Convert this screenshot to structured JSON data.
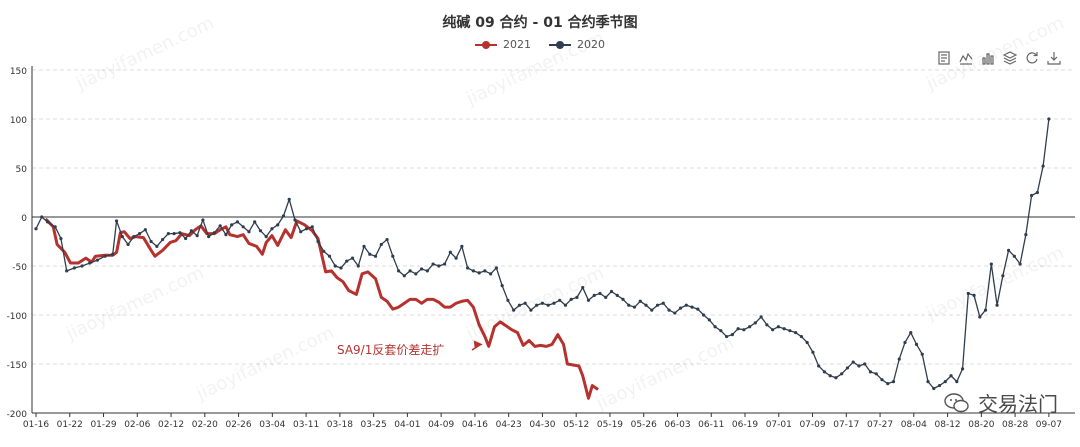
{
  "title": "纯碱 09 合约 - 01 合约季节图",
  "legend": [
    {
      "name": "2021",
      "color": "#b5322f"
    },
    {
      "name": "2020",
      "color": "#2f3e4e"
    }
  ],
  "toolbox": [
    "data-view-icon",
    "line-chart-icon",
    "bar-chart-icon",
    "stack-icon",
    "restore-icon",
    "save-image-icon"
  ],
  "watermark": "交易法门",
  "watermark_bg": "jiaoyifamen.com",
  "chart_data": {
    "type": "line",
    "title": "纯碱 09 合约 - 01 合约季节图",
    "x": [
      "01-16",
      "01-22",
      "01-29",
      "02-06",
      "02-12",
      "02-20",
      "02-26",
      "03-04",
      "03-11",
      "03-18",
      "03-25",
      "04-01",
      "04-09",
      "04-16",
      "04-23",
      "04-30",
      "05-12",
      "05-19",
      "05-26",
      "06-03",
      "06-11",
      "06-19",
      "07-01",
      "07-09",
      "07-17",
      "07-27",
      "08-04",
      "08-12",
      "08-20",
      "08-28",
      "09-07"
    ],
    "ylim": [
      -200,
      150
    ],
    "yticks": [
      -200,
      -150,
      -100,
      -50,
      0,
      50,
      100,
      150
    ],
    "grid": true,
    "annotation": {
      "text": "SA9/1反套价差走扩",
      "color": "#b5322f"
    },
    "series": [
      {
        "name": "2021",
        "color": "#b5322f",
        "values": [
          [
            0.5,
            -2
          ],
          [
            0.9,
            -10
          ],
          [
            1.1,
            -28
          ],
          [
            1.5,
            -36
          ],
          [
            1.8,
            -47
          ],
          [
            2.2,
            -47
          ],
          [
            2.6,
            -42
          ],
          [
            2.9,
            -46
          ],
          [
            3.1,
            -40
          ],
          [
            3.6,
            -39
          ],
          [
            4.0,
            -39
          ],
          [
            4.2,
            -36
          ],
          [
            4.4,
            -16
          ],
          [
            4.6,
            -15
          ],
          [
            4.9,
            -22
          ],
          [
            5.2,
            -20
          ],
          [
            5.6,
            -21
          ],
          [
            6.0,
            -34
          ],
          [
            6.2,
            -40
          ],
          [
            6.6,
            -34
          ],
          [
            7.0,
            -26
          ],
          [
            7.3,
            -24
          ],
          [
            7.6,
            -17
          ],
          [
            8.0,
            -19
          ],
          [
            8.3,
            -13
          ],
          [
            8.6,
            -9
          ],
          [
            8.9,
            -17
          ],
          [
            9.3,
            -17
          ],
          [
            9.6,
            -13
          ],
          [
            9.9,
            -10
          ],
          [
            10.1,
            -18
          ],
          [
            10.5,
            -20
          ],
          [
            10.8,
            -18
          ],
          [
            11.1,
            -27
          ],
          [
            11.5,
            -30
          ],
          [
            11.8,
            -38
          ],
          [
            12.0,
            -26
          ],
          [
            12.3,
            -19
          ],
          [
            12.6,
            -29
          ],
          [
            13.0,
            -13
          ],
          [
            13.3,
            -21
          ],
          [
            13.6,
            -4
          ],
          [
            14.0,
            -8
          ],
          [
            14.4,
            -14
          ],
          [
            14.7,
            -22
          ],
          [
            15.1,
            -56
          ],
          [
            15.4,
            -55
          ],
          [
            15.7,
            -62
          ],
          [
            16.0,
            -66
          ],
          [
            16.3,
            -75
          ],
          [
            16.7,
            -79
          ],
          [
            17.0,
            -58
          ],
          [
            17.3,
            -56
          ],
          [
            17.7,
            -63
          ],
          [
            18.0,
            -82
          ],
          [
            18.3,
            -86
          ],
          [
            18.6,
            -94
          ],
          [
            18.9,
            -92
          ],
          [
            19.2,
            -88
          ],
          [
            19.5,
            -84
          ],
          [
            19.8,
            -84
          ],
          [
            20.1,
            -88
          ],
          [
            20.4,
            -84
          ],
          [
            20.7,
            -84
          ],
          [
            21.0,
            -87
          ],
          [
            21.3,
            -92
          ],
          [
            21.6,
            -92
          ],
          [
            21.9,
            -88
          ],
          [
            22.2,
            -86
          ],
          [
            22.5,
            -85
          ],
          [
            22.8,
            -92
          ],
          [
            23.1,
            -110
          ],
          [
            23.4,
            -122
          ],
          [
            23.6,
            -132
          ],
          [
            23.9,
            -112
          ],
          [
            24.2,
            -107
          ],
          [
            24.5,
            -111
          ],
          [
            24.8,
            -115
          ],
          [
            25.1,
            -118
          ],
          [
            25.4,
            -131
          ],
          [
            25.7,
            -126
          ],
          [
            26.0,
            -132
          ],
          [
            26.3,
            -131
          ],
          [
            26.6,
            -132
          ],
          [
            26.9,
            -130
          ],
          [
            27.2,
            -120
          ],
          [
            27.5,
            -130
          ],
          [
            27.7,
            -150
          ],
          [
            28.0,
            -151
          ],
          [
            28.3,
            -152
          ],
          [
            28.5,
            -162
          ],
          [
            28.8,
            -185
          ],
          [
            29.0,
            -172
          ],
          [
            29.3,
            -176
          ]
        ]
      },
      {
        "name": "2020",
        "color": "#2f3e4e",
        "values": [
          [
            0.0,
            -12
          ],
          [
            0.3,
            0
          ],
          [
            0.6,
            -5
          ],
          [
            1.0,
            -10
          ],
          [
            1.3,
            -22
          ],
          [
            1.6,
            -55
          ],
          [
            2.0,
            -52
          ],
          [
            2.4,
            -50
          ],
          [
            2.8,
            -47
          ],
          [
            3.2,
            -44
          ],
          [
            3.6,
            -40
          ],
          [
            4.0,
            -38
          ],
          [
            4.2,
            -4
          ],
          [
            4.5,
            -20
          ],
          [
            4.8,
            -28
          ],
          [
            5.1,
            -20
          ],
          [
            5.4,
            -17
          ],
          [
            5.7,
            -13
          ],
          [
            6.0,
            -25
          ],
          [
            6.3,
            -30
          ],
          [
            6.6,
            -23
          ],
          [
            6.9,
            -17
          ],
          [
            7.2,
            -17
          ],
          [
            7.5,
            -16
          ],
          [
            7.8,
            -22
          ],
          [
            8.1,
            -14
          ],
          [
            8.4,
            -19
          ],
          [
            8.7,
            -3
          ],
          [
            9.0,
            -20
          ],
          [
            9.3,
            -16
          ],
          [
            9.6,
            -9
          ],
          [
            9.9,
            -18
          ],
          [
            10.2,
            -8
          ],
          [
            10.5,
            -5
          ],
          [
            10.8,
            -10
          ],
          [
            11.1,
            -15
          ],
          [
            11.4,
            -5
          ],
          [
            11.7,
            -14
          ],
          [
            12.0,
            -20
          ],
          [
            12.3,
            -12
          ],
          [
            12.6,
            -8
          ],
          [
            12.9,
            1
          ],
          [
            13.2,
            18
          ],
          [
            13.5,
            -3
          ],
          [
            13.8,
            -15
          ],
          [
            14.1,
            -12
          ],
          [
            14.4,
            -10
          ],
          [
            14.7,
            -25
          ],
          [
            15.0,
            -35
          ],
          [
            15.3,
            -40
          ],
          [
            15.6,
            -50
          ],
          [
            15.9,
            -52
          ],
          [
            16.2,
            -45
          ],
          [
            16.5,
            -42
          ],
          [
            16.8,
            -50
          ],
          [
            17.1,
            -30
          ],
          [
            17.4,
            -38
          ],
          [
            17.7,
            -40
          ],
          [
            18.0,
            -28
          ],
          [
            18.3,
            -23
          ],
          [
            18.6,
            -40
          ],
          [
            18.9,
            -55
          ],
          [
            19.2,
            -60
          ],
          [
            19.5,
            -55
          ],
          [
            19.8,
            -58
          ],
          [
            20.1,
            -53
          ],
          [
            20.4,
            -55
          ],
          [
            20.7,
            -48
          ],
          [
            21.0,
            -50
          ],
          [
            21.3,
            -48
          ],
          [
            21.6,
            -36
          ],
          [
            21.9,
            -42
          ],
          [
            22.2,
            -30
          ],
          [
            22.5,
            -52
          ],
          [
            22.8,
            -55
          ],
          [
            23.1,
            -57
          ],
          [
            23.4,
            -55
          ],
          [
            23.7,
            -58
          ],
          [
            24.0,
            -52
          ],
          [
            24.3,
            -70
          ],
          [
            24.6,
            -85
          ],
          [
            24.9,
            -95
          ],
          [
            25.2,
            -90
          ],
          [
            25.5,
            -88
          ],
          [
            25.8,
            -95
          ],
          [
            26.1,
            -90
          ],
          [
            26.4,
            -88
          ],
          [
            26.7,
            -90
          ],
          [
            27.0,
            -88
          ],
          [
            27.3,
            -85
          ],
          [
            27.6,
            -90
          ],
          [
            27.9,
            -84
          ],
          [
            28.2,
            -82
          ],
          [
            28.5,
            -72
          ],
          [
            28.8,
            -85
          ],
          [
            29.1,
            -80
          ],
          [
            29.4,
            -78
          ],
          [
            29.7,
            -82
          ],
          [
            30.0,
            -76
          ],
          [
            30.3,
            -80
          ],
          [
            30.6,
            -84
          ],
          [
            30.9,
            -90
          ],
          [
            31.2,
            -92
          ],
          [
            31.5,
            -86
          ],
          [
            31.8,
            -90
          ],
          [
            32.1,
            -95
          ],
          [
            32.4,
            -90
          ],
          [
            32.7,
            -88
          ],
          [
            33.0,
            -95
          ],
          [
            33.3,
            -98
          ],
          [
            33.6,
            -93
          ],
          [
            33.9,
            -90
          ],
          [
            34.2,
            -92
          ],
          [
            34.5,
            -94
          ],
          [
            34.8,
            -100
          ],
          [
            35.1,
            -105
          ],
          [
            35.4,
            -112
          ],
          [
            35.7,
            -116
          ],
          [
            36.0,
            -122
          ],
          [
            36.3,
            -120
          ],
          [
            36.6,
            -114
          ],
          [
            36.9,
            -115
          ],
          [
            37.2,
            -112
          ],
          [
            37.5,
            -108
          ],
          [
            37.8,
            -102
          ],
          [
            38.1,
            -110
          ],
          [
            38.4,
            -115
          ],
          [
            38.7,
            -112
          ],
          [
            39.0,
            -114
          ],
          [
            39.3,
            -116
          ],
          [
            39.6,
            -118
          ],
          [
            39.9,
            -122
          ],
          [
            40.2,
            -128
          ],
          [
            40.5,
            -138
          ],
          [
            40.8,
            -152
          ],
          [
            41.1,
            -158
          ],
          [
            41.4,
            -162
          ],
          [
            41.7,
            -164
          ],
          [
            42.0,
            -160
          ],
          [
            42.3,
            -154
          ],
          [
            42.6,
            -148
          ],
          [
            42.9,
            -152
          ],
          [
            43.2,
            -150
          ],
          [
            43.5,
            -158
          ],
          [
            43.8,
            -160
          ],
          [
            44.1,
            -166
          ],
          [
            44.4,
            -170
          ],
          [
            44.7,
            -168
          ],
          [
            45.0,
            -145
          ],
          [
            45.3,
            -128
          ],
          [
            45.6,
            -118
          ],
          [
            45.9,
            -130
          ],
          [
            46.2,
            -140
          ],
          [
            46.5,
            -168
          ],
          [
            46.8,
            -175
          ],
          [
            47.1,
            -172
          ],
          [
            47.4,
            -168
          ],
          [
            47.7,
            -162
          ],
          [
            48.0,
            -168
          ],
          [
            48.3,
            -155
          ],
          [
            48.6,
            -78
          ],
          [
            48.9,
            -80
          ],
          [
            49.2,
            -102
          ],
          [
            49.5,
            -95
          ],
          [
            49.8,
            -48
          ],
          [
            50.1,
            -90
          ],
          [
            50.4,
            -60
          ],
          [
            50.7,
            -34
          ],
          [
            51.0,
            -40
          ],
          [
            51.3,
            -48
          ],
          [
            51.6,
            -18
          ],
          [
            51.9,
            22
          ],
          [
            52.2,
            25
          ],
          [
            52.5,
            52
          ],
          [
            52.8,
            100
          ]
        ]
      }
    ]
  }
}
